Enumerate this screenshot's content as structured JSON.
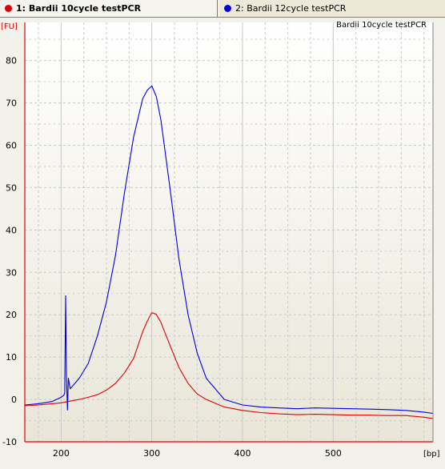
{
  "tabs": [
    {
      "label": "1: Bardii 10cycle testPCR",
      "color": "#e00000",
      "active": true
    },
    {
      "label": "2: Bardii 12cycle testPCR",
      "color": "#0000e0",
      "active": false
    }
  ],
  "chart_data": {
    "type": "line",
    "title": "Bardii 10cycle testPCR",
    "ylabel": "[FU]",
    "xlabel": "[bp]",
    "xlim": [
      160,
      610
    ],
    "ylim": [
      -10,
      89
    ],
    "xticks": [
      200,
      300,
      400,
      500
    ],
    "yticks": [
      -10,
      0,
      10,
      20,
      30,
      40,
      50,
      60,
      70,
      80
    ],
    "xgrid_minor": [
      175,
      225,
      250,
      275,
      325,
      350,
      375,
      425,
      450,
      475,
      525,
      550,
      575,
      600
    ],
    "ygrid_minor": [
      -5,
      5,
      15,
      25,
      35,
      45,
      55,
      65,
      75,
      85
    ],
    "grid": true,
    "colors": {
      "plot_bg_top": "#ffffff",
      "plot_bg_bottom": "#e9e6d8",
      "axis": "#e00000",
      "grid": "#c8c8c8"
    },
    "series": [
      {
        "name": "1: Bardii 10cycle testPCR",
        "color": "#e00000",
        "x": [
          160,
          175,
          190,
          200,
          210,
          220,
          230,
          240,
          250,
          260,
          270,
          280,
          290,
          295,
          300,
          305,
          310,
          320,
          330,
          340,
          350,
          360,
          380,
          400,
          420,
          440,
          460,
          480,
          500,
          520,
          540,
          560,
          580,
          600,
          610
        ],
        "y": [
          -1.5,
          -1.3,
          -1.0,
          -0.8,
          -0.4,
          0.0,
          0.5,
          1.1,
          2.2,
          3.8,
          6.3,
          9.7,
          16.0,
          18.5,
          20.5,
          20.1,
          18.2,
          12.8,
          7.5,
          3.8,
          1.3,
          0.0,
          -1.8,
          -2.6,
          -3.1,
          -3.4,
          -3.6,
          -3.5,
          -3.6,
          -3.7,
          -3.7,
          -3.8,
          -3.8,
          -4.2,
          -4.5
        ]
      },
      {
        "name": "2: Bardii 12cycle testPCR",
        "color": "#0000e0",
        "x": [
          160,
          175,
          190,
          200,
          203,
          204,
          205,
          206,
          207,
          208,
          210,
          220,
          230,
          240,
          250,
          260,
          270,
          280,
          290,
          295,
          300,
          305,
          310,
          320,
          330,
          340,
          350,
          360,
          380,
          400,
          420,
          440,
          460,
          480,
          500,
          520,
          540,
          560,
          580,
          600,
          610
        ],
        "y": [
          -1.3,
          -1.0,
          -0.5,
          0.5,
          1.0,
          1.5,
          24.5,
          5.0,
          -2.5,
          5.0,
          2.5,
          5.0,
          8.5,
          15.0,
          23.0,
          34.0,
          49.0,
          62.0,
          71.0,
          73.0,
          74.0,
          71.5,
          66.0,
          50.0,
          33.0,
          20.0,
          11.0,
          5.0,
          0.0,
          -1.3,
          -1.8,
          -2.0,
          -2.2,
          -2.0,
          -2.1,
          -2.2,
          -2.3,
          -2.4,
          -2.6,
          -3.0,
          -3.3
        ]
      }
    ]
  }
}
